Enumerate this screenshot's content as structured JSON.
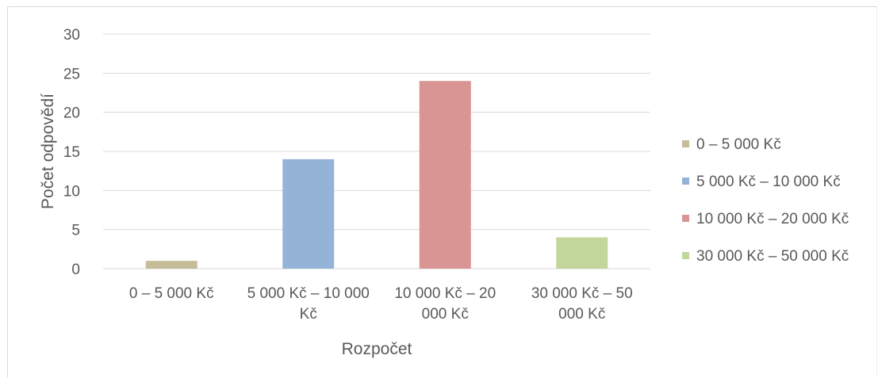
{
  "chart_data": {
    "type": "bar",
    "title": "",
    "xlabel": "Rozpočet",
    "ylabel": "Počet odpovědí",
    "ylim": [
      0,
      30
    ],
    "yticks": [
      0,
      5,
      10,
      15,
      20,
      25,
      30
    ],
    "grid": true,
    "legend_position": "right",
    "categories": [
      {
        "label": "0 – 5 000 Kč",
        "label_lines": [
          "0 – 5 000 Kč"
        ]
      },
      {
        "label": "5 000 Kč – 10 000 Kč",
        "label_lines": [
          "5 000 Kč – 10 000",
          "Kč"
        ]
      },
      {
        "label": "10 000 Kč – 20 000 Kč",
        "label_lines": [
          "10 000 Kč – 20",
          "000 Kč"
        ]
      },
      {
        "label": "30 000 Kč – 50 000 Kč",
        "label_lines": [
          "30 000 Kč – 50",
          "000 Kč"
        ]
      }
    ],
    "values": [
      1,
      14,
      24,
      4
    ],
    "colors": [
      "#c4bd97",
      "#95b3d7",
      "#d99594",
      "#c3d69b"
    ],
    "legend": [
      {
        "label": "0 – 5 000 Kč",
        "color": "#c4bd97"
      },
      {
        "label": "5 000 Kč – 10 000 Kč",
        "color": "#95b3d7"
      },
      {
        "label": "10 000 Kč – 20 000 Kč",
        "color": "#d99594"
      },
      {
        "label": "30 000 Kč – 50 000 Kč",
        "color": "#c3d69b"
      }
    ]
  }
}
